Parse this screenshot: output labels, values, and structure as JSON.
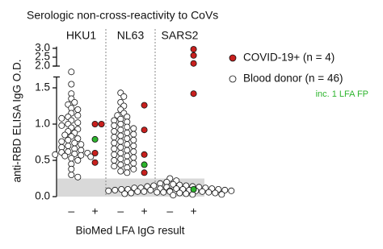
{
  "chart_data": {
    "type": "scatter",
    "title": "Serologic non-cross-reactivity to CoVs",
    "ylabel": "anti-RBD ELISA IgG O.D.",
    "xlabel": "BioMed LFA IgG result",
    "panels": [
      "HKU1",
      "NL63",
      "SARS2"
    ],
    "categories": [
      "–",
      "+"
    ],
    "ylim": [
      0,
      1.65
    ],
    "yticks": [
      {
        "value": 0,
        "label": "0.0"
      },
      {
        "value": 0.5,
        "label": "0.5"
      },
      {
        "value": 1,
        "label": "1.0"
      },
      {
        "value": 1.5,
        "label": "1.5"
      }
    ],
    "ylim_upper": [
      2.0,
      3.1
    ],
    "yticks_upper": [
      {
        "value": 2,
        "label": "2.0"
      },
      {
        "value": 2.5,
        "label": "2.5"
      },
      {
        "value": 3,
        "label": "3.0"
      }
    ],
    "threshold": 0.25,
    "series": [
      {
        "name": "COVID-19+ (n = 4)",
        "color": "#c8201e",
        "values": [
          [
            1.0,
            1.0,
            0.6,
            0.47
          ],
          [
            1.26,
            0.92,
            0.58,
            0.33
          ],
          [
            2.95,
            2.6,
            2.15,
            1.42
          ]
        ]
      },
      {
        "name": "Blood donor (n = 46)",
        "color": "#ffffff",
        "values": [
          [
            1.72,
            1.55,
            1.42,
            1.35,
            1.3,
            1.27,
            1.22,
            1.2,
            1.15,
            1.12,
            1.1,
            1.08,
            1.05,
            1.02,
            1.0,
            0.98,
            0.95,
            0.93,
            0.9,
            0.88,
            0.85,
            0.83,
            0.8,
            0.78,
            0.76,
            0.74,
            0.72,
            0.7,
            0.68,
            0.66,
            0.64,
            0.62,
            0.61,
            0.6,
            0.59,
            0.58,
            0.57,
            0.56,
            0.55,
            0.53,
            0.5,
            0.45,
            0.38,
            0.3,
            0.27
          ],
          [
            1.43,
            1.38,
            1.3,
            1.25,
            1.2,
            1.15,
            1.12,
            1.1,
            1.07,
            1.05,
            1.03,
            1.0,
            0.98,
            0.96,
            0.94,
            0.92,
            0.9,
            0.88,
            0.86,
            0.84,
            0.82,
            0.8,
            0.78,
            0.76,
            0.74,
            0.72,
            0.7,
            0.68,
            0.66,
            0.64,
            0.62,
            0.6,
            0.58,
            0.56,
            0.54,
            0.52,
            0.5,
            0.48,
            0.46,
            0.44,
            0.42,
            0.4,
            0.38,
            0.35,
            0.33
          ],
          [
            0.25,
            0.22,
            0.2,
            0.18,
            0.17,
            0.16,
            0.15,
            0.15,
            0.14,
            0.14,
            0.13,
            0.13,
            0.12,
            0.12,
            0.12,
            0.11,
            0.11,
            0.11,
            0.1,
            0.1,
            0.1,
            0.1,
            0.09,
            0.09,
            0.09,
            0.09,
            0.08,
            0.08,
            0.08,
            0.08,
            0.07,
            0.07,
            0.07,
            0.07,
            0.06,
            0.06,
            0.06,
            0.05,
            0.05,
            0.05,
            0.04,
            0.04,
            0.03,
            0.03,
            0.02
          ]
        ],
        "fp_values": [
          0.79,
          0.44,
          0.1
        ],
        "fp_color": "#2db52d",
        "fp_note": "inc. 1 LFA FP"
      }
    ]
  }
}
